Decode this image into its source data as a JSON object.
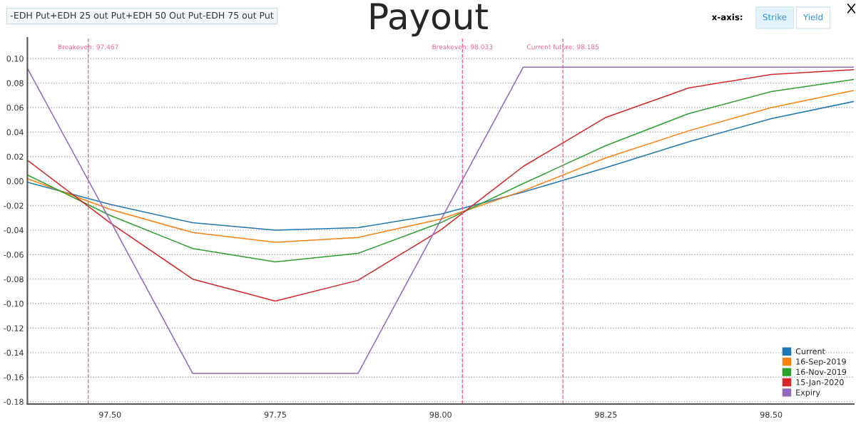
{
  "chart_data": {
    "type": "line",
    "title": "Payout",
    "subtitle": "-EDH Put+EDH 25 out Put+EDH 50 Out Put-EDH 75 out Put",
    "annotations": [
      "x-axis:",
      "Strike",
      "Yield"
    ],
    "x": [
      97.375,
      97.5,
      97.625,
      97.75,
      97.875,
      98.0,
      98.125,
      98.25,
      98.375,
      98.5,
      98.625
    ],
    "series": [
      {
        "name": "Current",
        "color": "#1f77b4",
        "values": [
          -0.001,
          -0.019,
          -0.034,
          -0.04,
          -0.038,
          -0.027,
          -0.009,
          0.011,
          0.032,
          0.051,
          0.065
        ]
      },
      {
        "name": "16-Sep-2019",
        "color": "#ff7f0e",
        "values": [
          0.002,
          -0.023,
          -0.042,
          -0.05,
          -0.046,
          -0.031,
          -0.008,
          0.019,
          0.041,
          0.06,
          0.074
        ]
      },
      {
        "name": "16-Nov-2019",
        "color": "#2ca02c",
        "values": [
          0.005,
          -0.028,
          -0.055,
          -0.066,
          -0.059,
          -0.034,
          -0.002,
          0.029,
          0.055,
          0.073,
          0.083
        ]
      },
      {
        "name": "15-Jan-2020",
        "color": "#d62728",
        "values": [
          0.017,
          -0.034,
          -0.08,
          -0.098,
          -0.081,
          -0.04,
          0.012,
          0.052,
          0.076,
          0.087,
          0.091
        ]
      },
      {
        "name": "Expiry",
        "color": "#9467bd",
        "values": [
          0.092,
          -0.032,
          -0.157,
          -0.157,
          -0.157,
          -0.032,
          0.093,
          0.093,
          0.093,
          0.093,
          0.093
        ]
      }
    ],
    "xlim": [
      97.375,
      98.625
    ],
    "xticks": [
      {
        "value": 97.5,
        "label": "97.50"
      },
      {
        "value": 97.75,
        "label": "97.75"
      },
      {
        "value": 98.0,
        "label": "98.00"
      },
      {
        "value": 98.25,
        "label": "98.25"
      },
      {
        "value": 98.5,
        "label": "98.50"
      }
    ],
    "ylim": [
      -0.182,
      0.117
    ],
    "yticks": [
      {
        "value": -0.18,
        "label": "-0.18"
      },
      {
        "value": -0.16,
        "label": "-0.16"
      },
      {
        "value": -0.14,
        "label": "-0.14"
      },
      {
        "value": -0.12,
        "label": "-0.12"
      },
      {
        "value": -0.1,
        "label": "-0.10"
      },
      {
        "value": -0.08,
        "label": "-0.08"
      },
      {
        "value": -0.06,
        "label": "-0.06"
      },
      {
        "value": -0.04,
        "label": "-0.04"
      },
      {
        "value": -0.02,
        "label": "-0.02"
      },
      {
        "value": 0.0,
        "label": "0.00"
      },
      {
        "value": 0.02,
        "label": "0.02"
      },
      {
        "value": 0.04,
        "label": "0.04"
      },
      {
        "value": 0.06,
        "label": "0.06"
      },
      {
        "value": 0.08,
        "label": "0.08"
      },
      {
        "value": 0.1,
        "label": "0.10"
      }
    ],
    "ref_lines": [
      {
        "axis": "x",
        "value": 97.467,
        "label": "Breakeven: 97.467",
        "color": "#f0609a",
        "line_style": "dashed"
      },
      {
        "axis": "x",
        "value": 98.033,
        "label": "Breakeven: 98.033",
        "color": "#f0609a",
        "line_style": "dashed"
      },
      {
        "axis": "x",
        "value": 98.185,
        "label": "Current future: 98.185",
        "color": "#f0609a",
        "line_style": "dashed"
      }
    ],
    "grid": "y",
    "legend": "bottom right",
    "marker": "none",
    "line_style": "solid"
  }
}
